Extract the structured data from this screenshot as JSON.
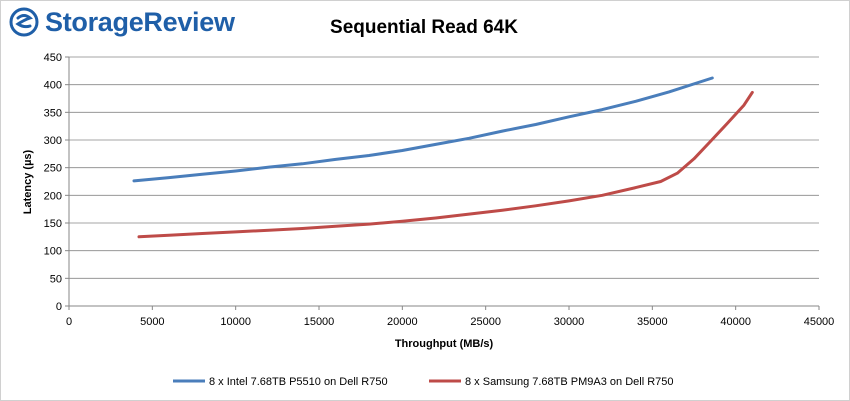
{
  "brand": {
    "name": "StorageReview",
    "logo_icon": "storagereview-logo-icon",
    "color": "#1f5fa8"
  },
  "chart_data": {
    "type": "line",
    "title": "Sequential Read 64K",
    "xlabel": "Throughput (MB/s)",
    "ylabel": "Latency (µs)",
    "xlim": [
      0,
      45000
    ],
    "ylim": [
      0,
      450
    ],
    "xticks": [
      0,
      5000,
      10000,
      15000,
      20000,
      25000,
      30000,
      35000,
      40000,
      45000
    ],
    "yticks": [
      0,
      50,
      100,
      150,
      200,
      250,
      300,
      350,
      400,
      450
    ],
    "grid": true,
    "legend_position": "bottom",
    "series": [
      {
        "name": "8 x Intel 7.68TB P5510 on Dell R750",
        "color": "#4a7ebb",
        "points": [
          [
            3900,
            226
          ],
          [
            6000,
            232
          ],
          [
            8000,
            238
          ],
          [
            10000,
            244
          ],
          [
            12000,
            251
          ],
          [
            14000,
            257
          ],
          [
            16000,
            265
          ],
          [
            18000,
            272
          ],
          [
            20000,
            281
          ],
          [
            22000,
            292
          ],
          [
            24000,
            303
          ],
          [
            26000,
            316
          ],
          [
            28000,
            328
          ],
          [
            30000,
            342
          ],
          [
            32000,
            355
          ],
          [
            34000,
            370
          ],
          [
            36000,
            387
          ],
          [
            38600,
            412
          ]
        ]
      },
      {
        "name": "8 x Samsung 7.68TB PM9A3 on Dell R750",
        "color": "#be4b48",
        "points": [
          [
            4200,
            125
          ],
          [
            6000,
            128
          ],
          [
            8000,
            131
          ],
          [
            10000,
            134
          ],
          [
            12000,
            137
          ],
          [
            14000,
            140
          ],
          [
            16000,
            144
          ],
          [
            18000,
            148
          ],
          [
            20000,
            153
          ],
          [
            22000,
            159
          ],
          [
            24000,
            166
          ],
          [
            26000,
            173
          ],
          [
            28000,
            181
          ],
          [
            30000,
            190
          ],
          [
            32000,
            200
          ],
          [
            34000,
            214
          ],
          [
            35500,
            225
          ],
          [
            36500,
            240
          ],
          [
            37500,
            266
          ],
          [
            38500,
            298
          ],
          [
            39500,
            330
          ],
          [
            40500,
            363
          ],
          [
            41000,
            386
          ]
        ]
      }
    ]
  }
}
